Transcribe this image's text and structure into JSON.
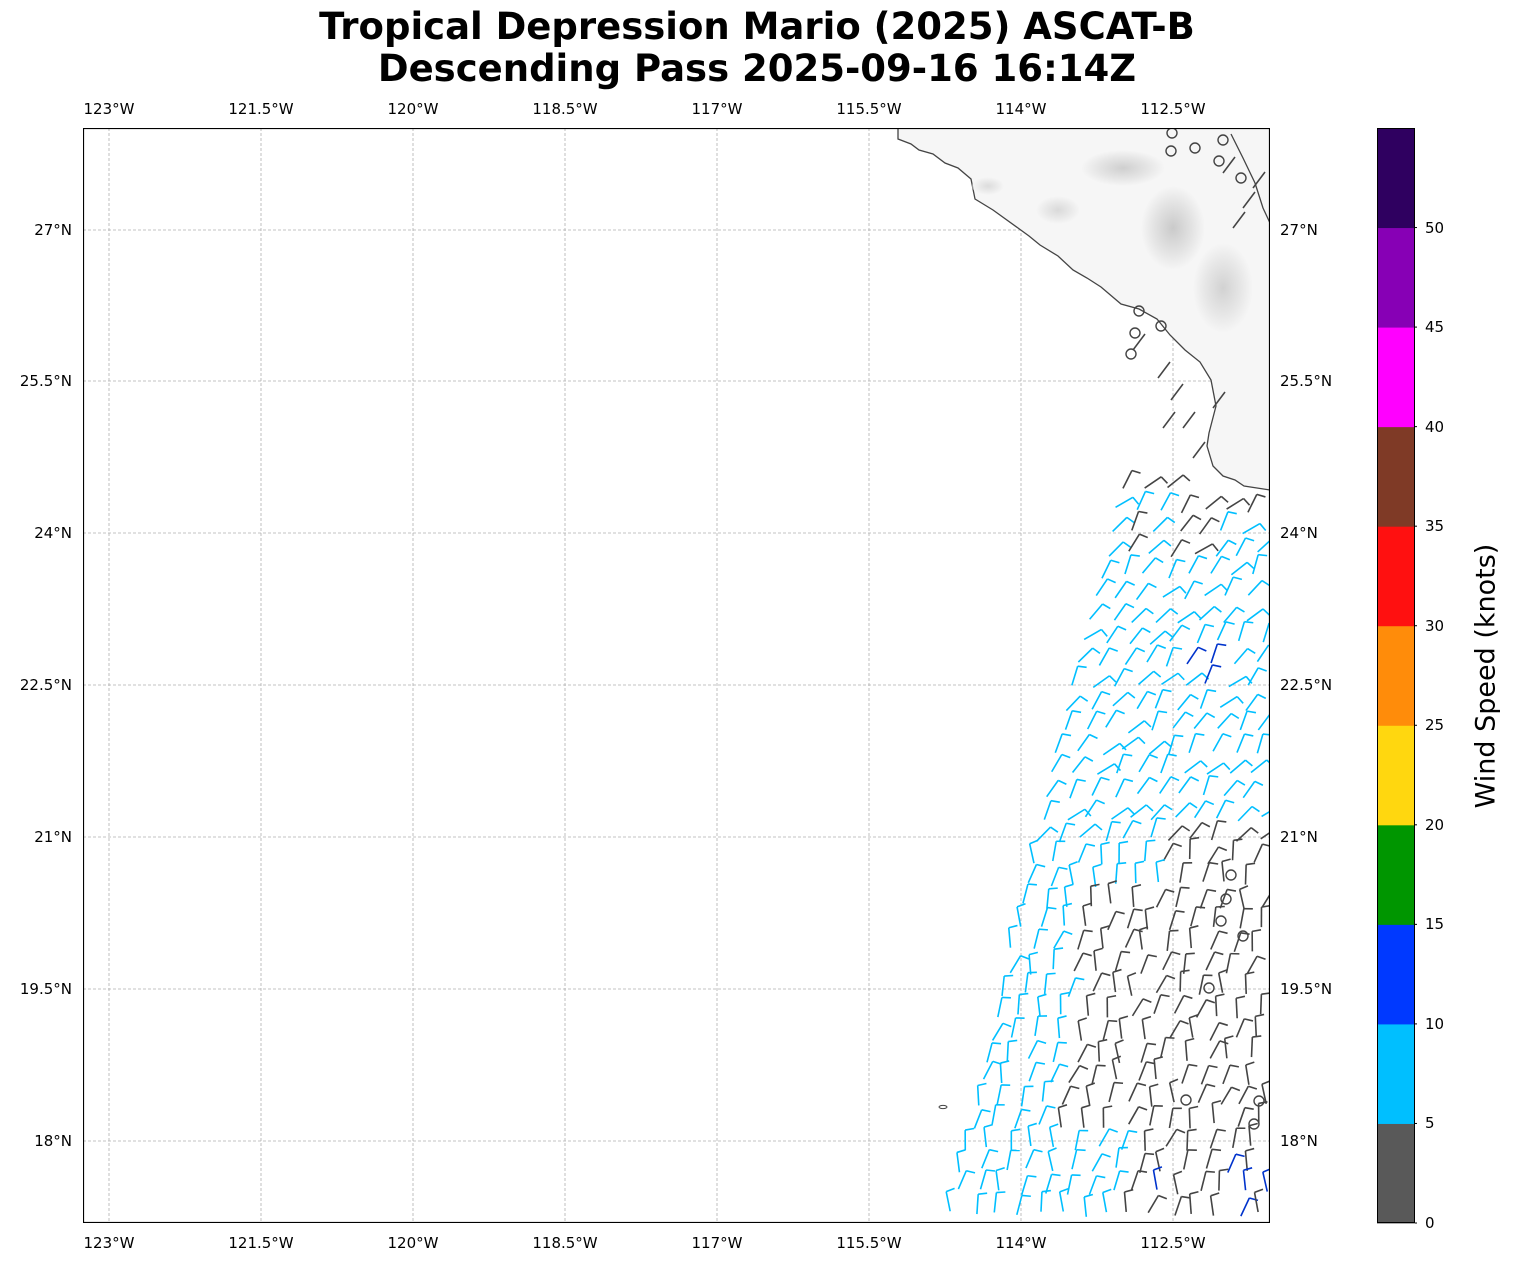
{
  "title_line1": "Tropical Depression Mario (2025) ASCAT-B",
  "title_line2": "Descending Pass 2025-09-16 16:14Z",
  "lon_ticks": [
    "123°W",
    "121.5°W",
    "120°W",
    "118.5°W",
    "117°W",
    "115.5°W",
    "114°W",
    "112.5°W"
  ],
  "lat_ticks": [
    "27°N",
    "25.5°N",
    "24°N",
    "22.5°N",
    "21°N",
    "19.5°N",
    "18°N"
  ],
  "colorbar": {
    "label": "Wind Speed (knots)",
    "ticks": [
      "0",
      "5",
      "10",
      "15",
      "20",
      "25",
      "30",
      "35",
      "40",
      "45",
      "50"
    ],
    "colors": [
      "#595959",
      "#00bfff",
      "#0039ff",
      "#009600",
      "#ffd70f",
      "#ff8c0a",
      "#ff1010",
      "#7f3a26",
      "#ff00ff",
      "#8700b5",
      "#2f0060"
    ]
  },
  "colors": {
    "land_outline": "#444444",
    "barb_calm": "#444444",
    "barb_5_10": "#00bfff",
    "barb_10_15": "#0033cc",
    "gridline": "#b0b0b0"
  }
}
